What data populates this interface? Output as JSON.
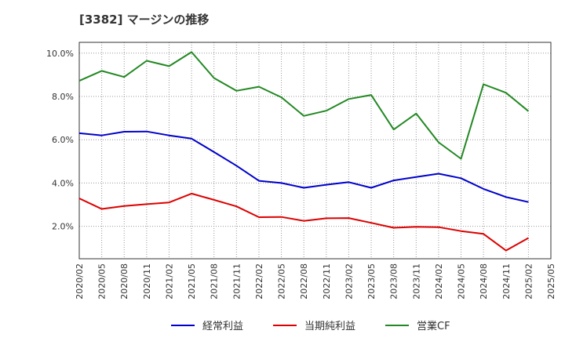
{
  "chart_data": {
    "type": "line",
    "title": "[3382]  マージンの推移",
    "x": [
      "2020/02",
      "2020/05",
      "2020/08",
      "2020/11",
      "2021/02",
      "2021/05",
      "2021/08",
      "2021/11",
      "2022/02",
      "2022/05",
      "2022/08",
      "2022/11",
      "2023/02",
      "2023/05",
      "2023/08",
      "2023/11",
      "2024/02",
      "2024/05",
      "2024/08",
      "2024/11",
      "2025/02"
    ],
    "x_ticks": [
      "2020/02",
      "2020/05",
      "2020/08",
      "2020/11",
      "2021/02",
      "2021/05",
      "2021/08",
      "2021/11",
      "2022/02",
      "2022/05",
      "2022/08",
      "2022/11",
      "2023/02",
      "2023/05",
      "2023/08",
      "2023/11",
      "2024/02",
      "2024/05",
      "2024/08",
      "2024/11",
      "2025/02",
      "2025/05"
    ],
    "y_ticks": [
      2.0,
      4.0,
      6.0,
      8.0,
      10.0
    ],
    "y_tick_labels": [
      "2.0%",
      "4.0%",
      "6.0%",
      "8.0%",
      "10.0%"
    ],
    "ylim": [
      0.5,
      10.5
    ],
    "grid": true,
    "legend_position": "bottom",
    "series": [
      {
        "name": "経常利益",
        "color": "#0000cc",
        "values": [
          6.3,
          6.2,
          6.37,
          6.38,
          6.2,
          6.05,
          5.43,
          4.8,
          4.1,
          4.0,
          3.78,
          3.92,
          4.04,
          3.78,
          4.12,
          4.28,
          4.43,
          4.22,
          3.73,
          3.35,
          3.12
        ]
      },
      {
        "name": "当期純利益",
        "color": "#dd0000",
        "values": [
          3.29,
          2.8,
          2.94,
          3.02,
          3.1,
          3.51,
          3.22,
          2.92,
          2.42,
          2.43,
          2.25,
          2.37,
          2.38,
          2.16,
          1.93,
          1.98,
          1.96,
          1.78,
          1.65,
          0.88,
          1.46
        ]
      },
      {
        "name": "営業CF",
        "color": "#228822",
        "values": [
          8.72,
          9.18,
          8.9,
          9.65,
          9.4,
          10.05,
          8.85,
          8.26,
          8.45,
          7.96,
          7.1,
          7.34,
          7.88,
          8.07,
          6.47,
          7.21,
          5.88,
          5.12,
          8.56,
          8.17,
          7.32
        ]
      }
    ]
  }
}
